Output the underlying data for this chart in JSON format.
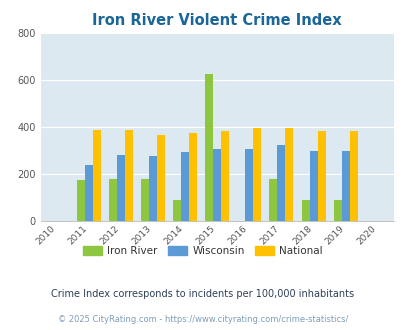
{
  "title": "Iron River Violent Crime Index",
  "all_years": [
    2010,
    2011,
    2012,
    2013,
    2014,
    2015,
    2016,
    2017,
    2018,
    2019,
    2020
  ],
  "data_years": [
    2011,
    2012,
    2013,
    2014,
    2015,
    2016,
    2017,
    2018,
    2019
  ],
  "iron_river": [
    175,
    178,
    178,
    90,
    625,
    0,
    180,
    90,
    90
  ],
  "wisconsin": [
    240,
    283,
    278,
    295,
    307,
    307,
    323,
    298,
    298
  ],
  "national": [
    387,
    387,
    365,
    375,
    383,
    398,
    398,
    383,
    383
  ],
  "colors": {
    "iron_river": "#8dc63f",
    "wisconsin": "#5b9bd5",
    "national": "#ffc000"
  },
  "ylim": [
    0,
    800
  ],
  "yticks": [
    0,
    200,
    400,
    600,
    800
  ],
  "plot_bg": "#dce9f0",
  "grid_color": "#ffffff",
  "title_color": "#1a6699",
  "legend_labels": [
    "Iron River",
    "Wisconsin",
    "National"
  ],
  "footnote1": "Crime Index corresponds to incidents per 100,000 inhabitants",
  "footnote2": "© 2025 CityRating.com - https://www.cityrating.com/crime-statistics/",
  "footnote_color1": "#2e4057",
  "footnote_color2": "#7f9db9"
}
